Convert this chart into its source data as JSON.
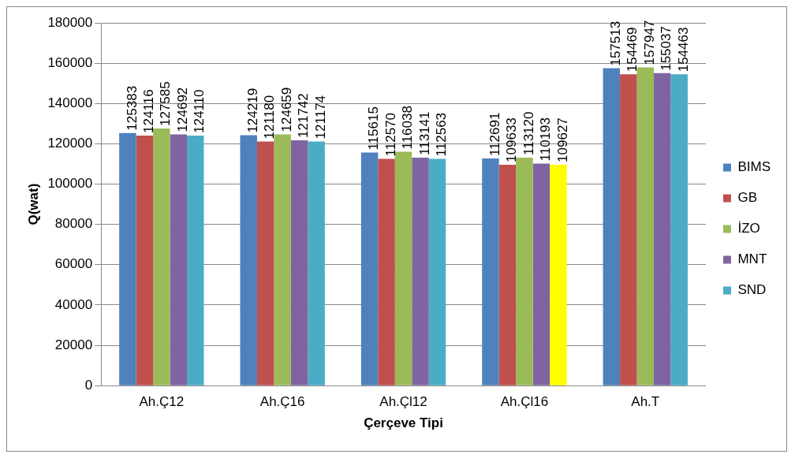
{
  "chart_data": {
    "type": "bar",
    "xlabel": "Çerçeve Tipi",
    "ylabel": "Q(wat)",
    "categories": [
      "Ah.Ç12",
      "Ah.Ç16",
      "Ah.Çl12",
      "Ah.Çl16",
      "Ah.T"
    ],
    "series": [
      {
        "name": "BIMS",
        "color": "#4f81bd",
        "values": [
          125383,
          124219,
          115615,
          112691,
          157513
        ]
      },
      {
        "name": "GB",
        "color": "#c0504d",
        "values": [
          124116,
          121180,
          112570,
          109633,
          154469
        ]
      },
      {
        "name": "İZO",
        "color": "#9bbb59",
        "values": [
          127585,
          124659,
          116038,
          113120,
          157947
        ]
      },
      {
        "name": "MNT",
        "color": "#8064a2",
        "values": [
          124692,
          121742,
          113141,
          110193,
          155037
        ]
      },
      {
        "name": "SND",
        "color": "#4bacc6",
        "colors": [
          "#4bacc6",
          "#4bacc6",
          "#4bacc6",
          "#ffff00",
          "#4bacc6"
        ],
        "values": [
          124110,
          121174,
          112563,
          109627,
          154463
        ]
      }
    ],
    "ylim": [
      0,
      180000
    ],
    "yticks": [
      0,
      20000,
      40000,
      60000,
      80000,
      100000,
      120000,
      140000,
      160000,
      180000
    ],
    "grid": "y",
    "legend": "right",
    "data_labels": true
  }
}
